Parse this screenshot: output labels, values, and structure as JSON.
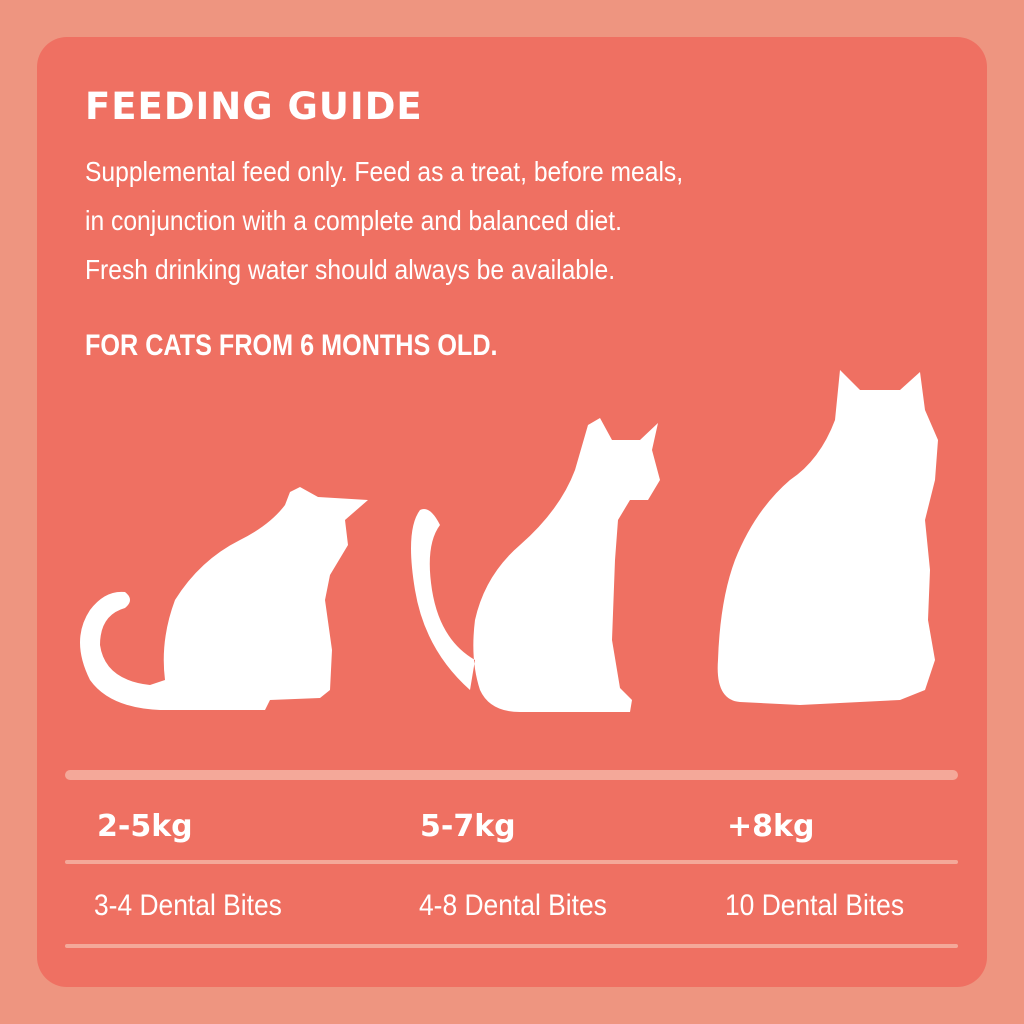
{
  "title": "FEEDING GUIDE",
  "description": [
    "Supplemental feed only. Feed as a treat, before meals,",
    "in conjunction with a complete and balanced diet.",
    "Fresh drinking water should always be available."
  ],
  "age_note": "FOR CATS FROM 6 MONTHS OLD.",
  "colors": {
    "background": "#EE9580",
    "card": "#EF7062",
    "divider": "#F4A899",
    "text": "#FFFFFF"
  },
  "guide": [
    {
      "weight": "2-5kg",
      "amount": "3-4 Dental Bites",
      "icon": "kitten-silhouette-icon"
    },
    {
      "weight": "5-7kg",
      "amount": "4-8 Dental Bites",
      "icon": "cat-silhouette-icon"
    },
    {
      "weight": "+8kg",
      "amount": "10 Dental Bites",
      "icon": "large-cat-silhouette-icon"
    }
  ]
}
